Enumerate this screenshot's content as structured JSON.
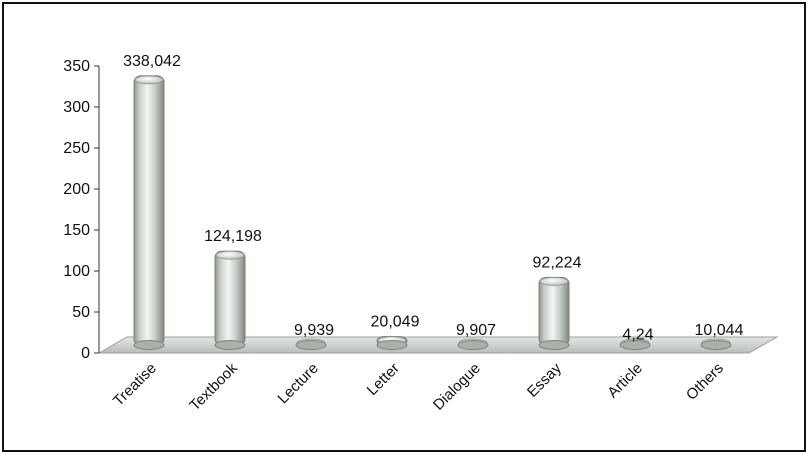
{
  "chart_data": {
    "type": "bar",
    "categories": [
      "Treatise",
      "Textbook",
      "Lecture",
      "Letter",
      "Dialogue",
      "Essay",
      "Article",
      "Others"
    ],
    "values": [
      338.042,
      124.198,
      9.939,
      20.049,
      9.907,
      92.224,
      4.24,
      10.044
    ],
    "data_labels": [
      "338,042",
      "124,198",
      "9,939",
      "20,049",
      "9,907",
      "92,224",
      "4,24",
      "10,044"
    ],
    "y_ticks": [
      "0",
      "50",
      "100",
      "150",
      "200",
      "250",
      "300",
      "350"
    ],
    "ylim": [
      0,
      350
    ],
    "title": "",
    "xlabel": "",
    "ylabel": "",
    "grid": false,
    "legend": "none",
    "style": "3d-cylinder",
    "colors": {
      "bar": "#c8cdc8",
      "bar_shadow": "#8f968f",
      "floor": "#d3d6d3",
      "axis": "#333333"
    }
  }
}
